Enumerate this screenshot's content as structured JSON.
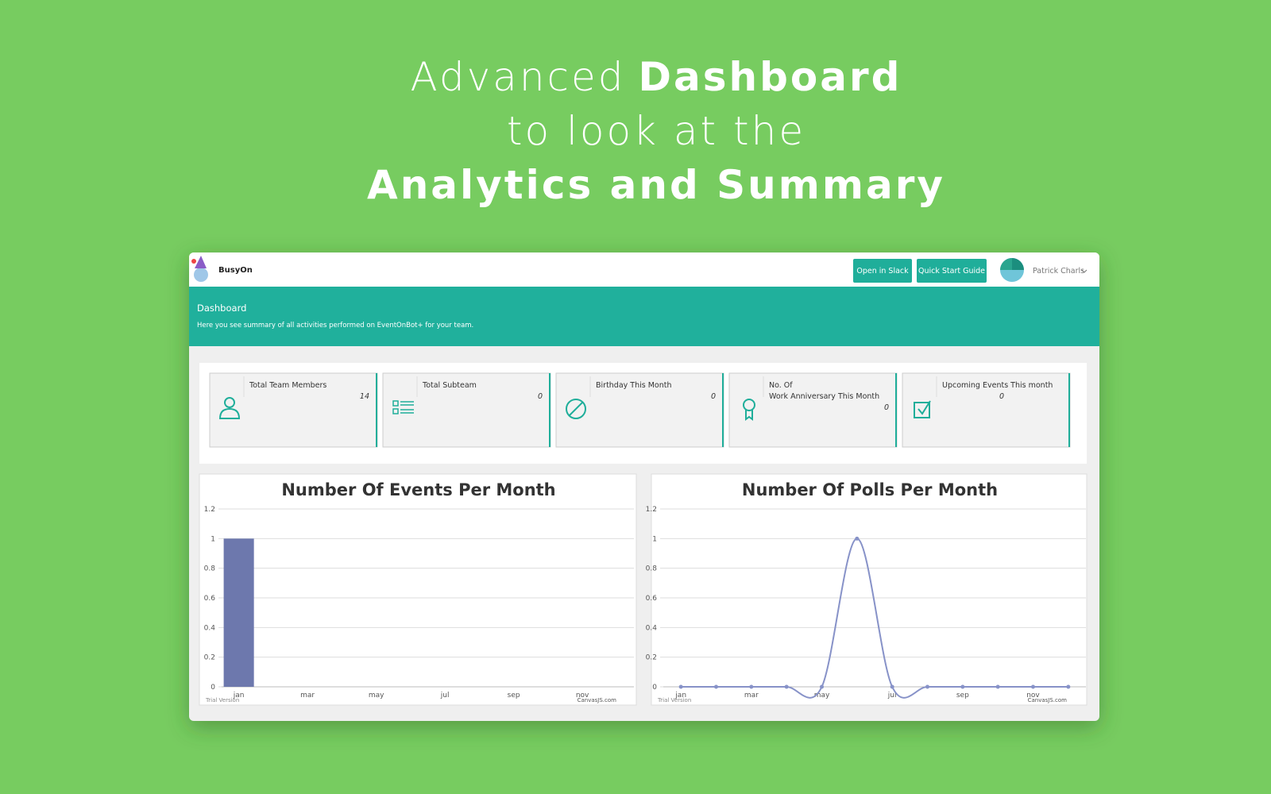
{
  "headline": {
    "line1": [
      "Advanced",
      "Dashboard"
    ],
    "line2": "to look at the",
    "line3": "Analytics and Summary"
  },
  "navbar": {
    "brand": "BusyOn",
    "buttons": [
      "Open in Slack",
      "Quick Start Guide"
    ],
    "user": "Patrick Charls"
  },
  "banner": {
    "title": "Dashboard",
    "subtitle": "Here you see summary of all activities performed on EventOnBot+ for your team."
  },
  "cards": [
    {
      "label": [
        "Total Team Members"
      ],
      "value": 14
    },
    {
      "label": [
        "Total Subteam"
      ],
      "value": 0
    },
    {
      "label": [
        "Birthday This Month"
      ],
      "value": 0
    },
    {
      "label": [
        "No. Of",
        "Work Anniversary This Month"
      ],
      "value": 0
    },
    {
      "label": [
        "Upcoming Events This month"
      ],
      "value": 0
    }
  ],
  "chart_data": [
    {
      "type": "bar",
      "title": "Number Of Events Per Month",
      "categories": [
        "jan",
        null,
        "mar",
        null,
        "may",
        null,
        "jul",
        null,
        "sep",
        null,
        "nov",
        null
      ],
      "values": [
        1,
        0,
        0,
        0,
        0,
        0,
        0,
        0,
        0,
        0,
        0,
        0
      ],
      "color": "#6d78ad",
      "ylim": [
        0,
        1.2
      ],
      "yticks": [
        0,
        0.2,
        0.4,
        0.6,
        0.8,
        1,
        1.2
      ],
      "grid": true,
      "watermark": "Trial Version",
      "credit": "CanvasJS.com"
    },
    {
      "type": "line",
      "title": "Number Of Polls Per Month",
      "categories": [
        "jan",
        null,
        "mar",
        null,
        "may",
        null,
        "jul",
        null,
        "sep",
        null,
        "nov",
        null
      ],
      "values": [
        0,
        0,
        0,
        0,
        0,
        1,
        0,
        0,
        0,
        0,
        0,
        0
      ],
      "color": "#8792c8",
      "ylim": [
        0,
        1.2
      ],
      "yticks": [
        0,
        0.2,
        0.4,
        0.6,
        0.8,
        1,
        1.2
      ],
      "grid": true,
      "watermark": "Trial Version",
      "credit": "CanvasJS.com"
    }
  ]
}
